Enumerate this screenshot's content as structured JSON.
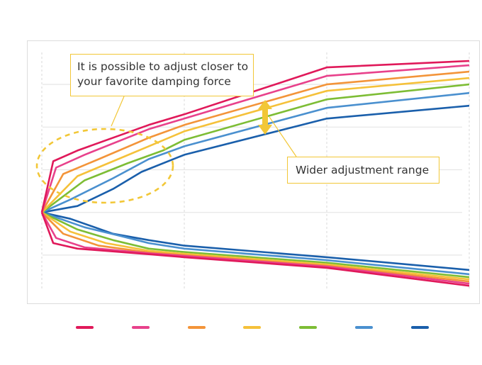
{
  "chart_data": {
    "type": "line",
    "title": "",
    "xlabel": "",
    "ylabel": "",
    "grid": true,
    "xlim": [
      0,
      3
    ],
    "ylim": [
      -1.8,
      3.8
    ],
    "legend_position": "bottom",
    "series": [
      {
        "name": "",
        "color": "#e0195a",
        "compression": [
          [
            0,
            0
          ],
          [
            0.08,
            1.2
          ],
          [
            0.25,
            1.45
          ],
          [
            0.75,
            2.05
          ],
          [
            1.0,
            2.3
          ],
          [
            2.0,
            3.4
          ],
          [
            3.0,
            3.55
          ]
        ],
        "rebound": [
          [
            0,
            0
          ],
          [
            0.08,
            -0.72
          ],
          [
            0.25,
            -0.85
          ],
          [
            0.75,
            -0.98
          ],
          [
            1.0,
            -1.05
          ],
          [
            2.0,
            -1.3
          ],
          [
            3.0,
            -1.72
          ]
        ]
      },
      {
        "name": "",
        "color": "#e8418b",
        "compression": [
          [
            0,
            0
          ],
          [
            0.1,
            1.05
          ],
          [
            0.3,
            1.35
          ],
          [
            0.75,
            1.95
          ],
          [
            1.0,
            2.2
          ],
          [
            2.0,
            3.2
          ],
          [
            3.0,
            3.45
          ]
        ],
        "rebound": [
          [
            0,
            0
          ],
          [
            0.1,
            -0.6
          ],
          [
            0.3,
            -0.82
          ],
          [
            0.75,
            -0.96
          ],
          [
            1.0,
            -1.02
          ],
          [
            2.0,
            -1.27
          ],
          [
            3.0,
            -1.67
          ]
        ]
      },
      {
        "name": "",
        "color": "#f39439",
        "compression": [
          [
            0,
            0
          ],
          [
            0.15,
            0.9
          ],
          [
            0.4,
            1.25
          ],
          [
            0.75,
            1.75
          ],
          [
            1.0,
            2.05
          ],
          [
            2.0,
            3.0
          ],
          [
            3.0,
            3.3
          ]
        ],
        "rebound": [
          [
            0,
            0
          ],
          [
            0.15,
            -0.5
          ],
          [
            0.4,
            -0.78
          ],
          [
            0.75,
            -0.94
          ],
          [
            1.0,
            -1.0
          ],
          [
            2.0,
            -1.25
          ],
          [
            3.0,
            -1.62
          ]
        ]
      },
      {
        "name": "",
        "color": "#f5c13a",
        "compression": [
          [
            0,
            0
          ],
          [
            0.25,
            0.85
          ],
          [
            0.5,
            1.2
          ],
          [
            0.75,
            1.55
          ],
          [
            1.0,
            1.9
          ],
          [
            2.0,
            2.85
          ],
          [
            3.0,
            3.15
          ]
        ],
        "rebound": [
          [
            0,
            0
          ],
          [
            0.2,
            -0.45
          ],
          [
            0.45,
            -0.72
          ],
          [
            0.75,
            -0.9
          ],
          [
            1.0,
            -0.97
          ],
          [
            2.0,
            -1.22
          ],
          [
            3.0,
            -1.57
          ]
        ]
      },
      {
        "name": "",
        "color": "#7dbd35",
        "compression": [
          [
            0,
            0
          ],
          [
            0.3,
            0.75
          ],
          [
            0.6,
            1.15
          ],
          [
            0.85,
            1.45
          ],
          [
            1.0,
            1.7
          ],
          [
            2.0,
            2.65
          ],
          [
            3.0,
            3.0
          ]
        ],
        "rebound": [
          [
            0,
            0
          ],
          [
            0.25,
            -0.4
          ],
          [
            0.5,
            -0.65
          ],
          [
            0.75,
            -0.85
          ],
          [
            1.0,
            -0.93
          ],
          [
            2.0,
            -1.18
          ],
          [
            3.0,
            -1.52
          ]
        ]
      },
      {
        "name": "",
        "color": "#4a90cf",
        "compression": [
          [
            0,
            0
          ],
          [
            0.2,
            0.3
          ],
          [
            0.5,
            0.8
          ],
          [
            0.75,
            1.25
          ],
          [
            1.0,
            1.55
          ],
          [
            2.0,
            2.45
          ],
          [
            3.0,
            2.8
          ]
        ],
        "rebound": [
          [
            0,
            0
          ],
          [
            0.3,
            -0.35
          ],
          [
            0.55,
            -0.55
          ],
          [
            0.75,
            -0.72
          ],
          [
            1.0,
            -0.85
          ],
          [
            2.0,
            -1.12
          ],
          [
            3.0,
            -1.45
          ]
        ]
      },
      {
        "name": "",
        "color": "#1a5fab",
        "compression": [
          [
            0,
            0
          ],
          [
            0.25,
            0.15
          ],
          [
            0.5,
            0.55
          ],
          [
            0.7,
            0.95
          ],
          [
            1.0,
            1.35
          ],
          [
            2.0,
            2.2
          ],
          [
            3.0,
            2.5
          ]
        ],
        "rebound": [
          [
            0,
            0
          ],
          [
            0.2,
            -0.15
          ],
          [
            0.5,
            -0.5
          ],
          [
            0.75,
            -0.65
          ],
          [
            1.0,
            -0.78
          ],
          [
            2.0,
            -1.05
          ],
          [
            3.0,
            -1.35
          ]
        ]
      }
    ],
    "annotations": [
      {
        "id": "callout-1",
        "text_lines": [
          "It is possible to adjust closer to",
          "your favorite damping force"
        ],
        "target": "dashed ellipse around low-speed region",
        "color": "#f2c737"
      },
      {
        "id": "callout-2",
        "text": "Wider adjustment range",
        "target": "double-headed arrow between top and bottom compression lines",
        "color": "#f2c737"
      }
    ],
    "accent_color": "#f2c737"
  }
}
